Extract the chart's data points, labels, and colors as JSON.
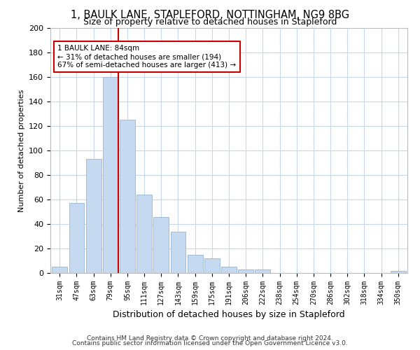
{
  "title": "1, BAULK LANE, STAPLEFORD, NOTTINGHAM, NG9 8BG",
  "subtitle": "Size of property relative to detached houses in Stapleford",
  "xlabel": "Distribution of detached houses by size in Stapleford",
  "ylabel": "Number of detached properties",
  "bar_labels": [
    "31sqm",
    "47sqm",
    "63sqm",
    "79sqm",
    "95sqm",
    "111sqm",
    "127sqm",
    "143sqm",
    "159sqm",
    "175sqm",
    "191sqm",
    "206sqm",
    "222sqm",
    "238sqm",
    "254sqm",
    "270sqm",
    "286sqm",
    "302sqm",
    "318sqm",
    "334sqm",
    "350sqm"
  ],
  "bar_values": [
    5,
    57,
    93,
    160,
    125,
    64,
    46,
    34,
    15,
    12,
    5,
    3,
    3,
    0,
    0,
    0,
    0,
    0,
    0,
    0,
    2
  ],
  "bar_color": "#c5d9f0",
  "bar_edge_color": "#a0bcd8",
  "vline_color": "#cc0000",
  "annotation_text": "1 BAULK LANE: 84sqm\n← 31% of detached houses are smaller (194)\n67% of semi-detached houses are larger (413) →",
  "annotation_box_color": "white",
  "annotation_box_edge": "#cc0000",
  "ylim": [
    0,
    200
  ],
  "yticks": [
    0,
    20,
    40,
    60,
    80,
    100,
    120,
    140,
    160,
    180,
    200
  ],
  "footer1": "Contains HM Land Registry data © Crown copyright and database right 2024.",
  "footer2": "Contains public sector information licensed under the Open Government Licence v3.0.",
  "background_color": "#ffffff",
  "grid_color": "#c8d8e8"
}
